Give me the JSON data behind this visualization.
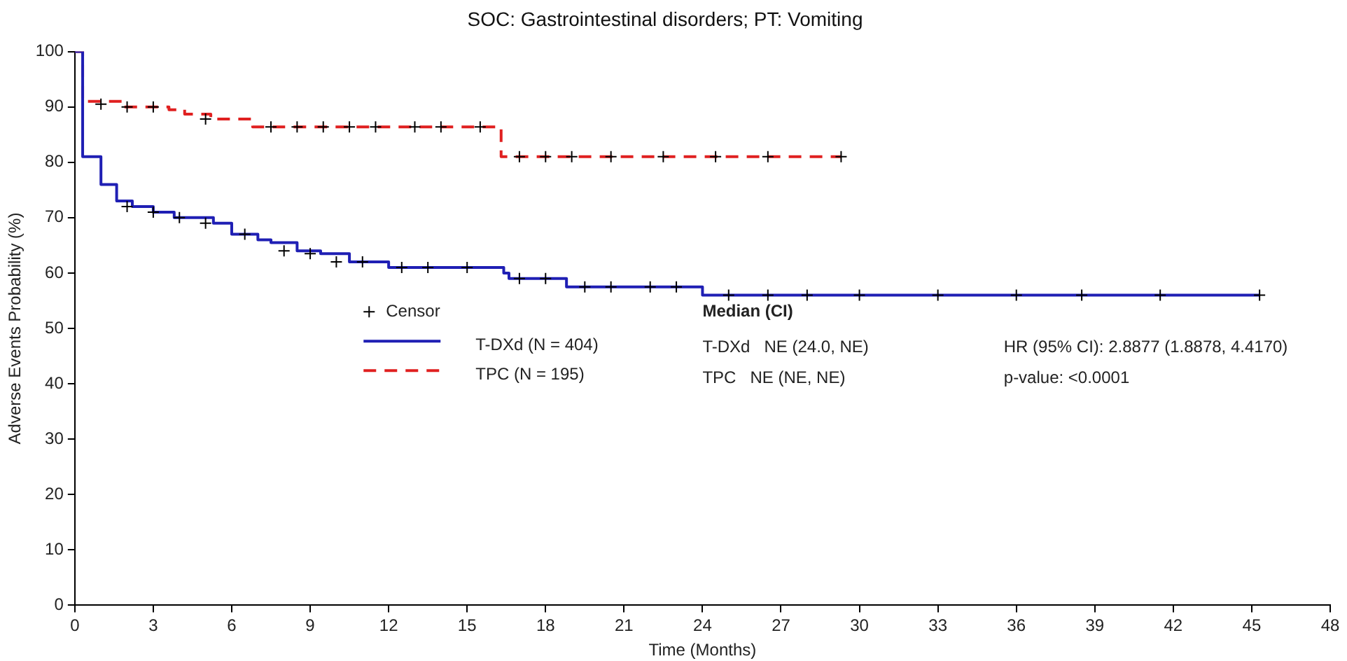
{
  "chart_data": {
    "type": "step",
    "title": "SOC: Gastrointestinal disorders; PT: Vomiting",
    "xlabel": "Time (Months)",
    "ylabel": "Adverse Events Probability (%)",
    "xlim": [
      0,
      48
    ],
    "xticks": [
      0,
      3,
      6,
      9,
      12,
      15,
      18,
      21,
      24,
      27,
      30,
      33,
      36,
      39,
      42,
      45,
      48
    ],
    "ylim": [
      0,
      100
    ],
    "yticks": [
      0,
      10,
      20,
      30,
      40,
      50,
      60,
      70,
      80,
      90,
      100
    ],
    "grid": false,
    "legend": "center",
    "series": [
      {
        "name": "T-DXd (N = 404)",
        "color": "#1f1fb4",
        "line_style": "solid",
        "x": [
          0,
          0.3,
          1.0,
          1.6,
          2.2,
          3.0,
          3.8,
          5.3,
          6.0,
          7.0,
          7.5,
          8.5,
          9.4,
          10.5,
          12.0,
          14.0,
          16.4,
          16.6,
          18.8,
          24.0,
          45.3
        ],
        "values": [
          100,
          81,
          76,
          73,
          72,
          71,
          70,
          69,
          67,
          66,
          65.5,
          64,
          63.5,
          62,
          61,
          61,
          60,
          59,
          57.5,
          56,
          56
        ]
      },
      {
        "name": "TPC (N = 195)",
        "color": "#e02020",
        "line_style": "dashed",
        "x": [
          0,
          0.3,
          1.8,
          3.6,
          4.2,
          5.2,
          6.8,
          16.3,
          29.3
        ],
        "values": [
          100,
          91,
          90,
          89.5,
          88.7,
          87.8,
          86.4,
          81,
          81
        ]
      },
      {
        "name": "Censor",
        "type": "scatter",
        "marker": "cross",
        "color": "#000000",
        "x": [
          2,
          3,
          4,
          5,
          6.5,
          8,
          9,
          10,
          11,
          12.5,
          13.5,
          15,
          17,
          18,
          19.5,
          20.5,
          22,
          23,
          25,
          26.5,
          28,
          30,
          33,
          36,
          38.5,
          41.5,
          45.3,
          1,
          2,
          3,
          5,
          7.5,
          8.5,
          9.5,
          10.5,
          11.5,
          13,
          14,
          15.5,
          17,
          18,
          19,
          20.5,
          22.5,
          24.5,
          26.5,
          29.3
        ],
        "values": [
          72,
          71,
          70,
          69,
          67,
          64,
          63.5,
          62,
          62,
          61,
          61,
          61,
          59,
          59,
          57.5,
          57.5,
          57.5,
          57.5,
          56,
          56,
          56,
          56,
          56,
          56,
          56,
          56,
          56,
          90.5,
          90,
          90,
          87.8,
          86.4,
          86.4,
          86.4,
          86.4,
          86.4,
          86.4,
          86.4,
          86.4,
          81,
          81,
          81,
          81,
          81,
          81,
          81,
          81
        ]
      }
    ],
    "annotations": [
      "Median (CI)",
      "T-DXd   NE (24.0, NE)",
      "TPC   NE (NE, NE)",
      "HR (95% CI): 2.8877 (1.8878, 4.4170)",
      "p-value: <0.0001"
    ]
  }
}
